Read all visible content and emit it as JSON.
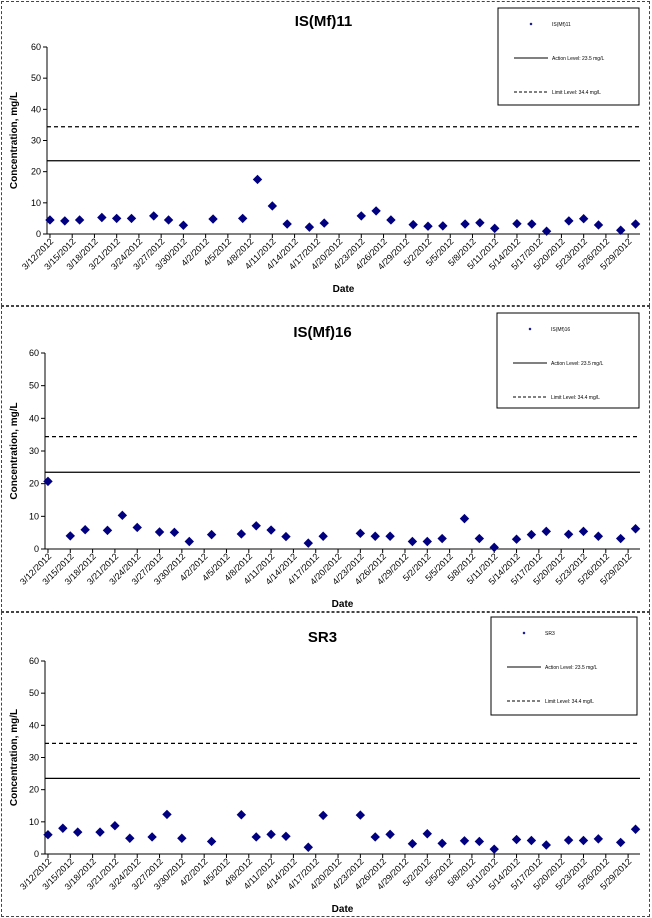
{
  "chart_data": [
    {
      "type": "scatter",
      "title": "IS(Mf)11",
      "xlabel": "Date",
      "ylabel": "Concentration, mg/L",
      "ylim": [
        0,
        60
      ],
      "yticks": [
        "0",
        "10",
        "20",
        "30",
        "40",
        "50",
        "60"
      ],
      "xticks": [
        "3/12/2012",
        "3/15/2012",
        "3/18/2012",
        "3/21/2012",
        "3/24/2012",
        "3/27/2012",
        "3/30/2012",
        "4/2/2012",
        "4/5/2012",
        "4/8/2012",
        "4/11/2012",
        "4/14/2012",
        "4/17/2012",
        "4/20/2012",
        "4/23/2012",
        "4/26/2012",
        "4/29/2012",
        "5/2/2012",
        "5/5/2012",
        "5/8/2012",
        "5/11/2012",
        "5/14/2012",
        "5/17/2012",
        "5/20/2012",
        "5/23/2012",
        "5/26/2012",
        "5/29/2012"
      ],
      "grid": false,
      "legend_position": "top-right",
      "series": [
        {
          "name": "IS(Mf)11",
          "marker": "diamond",
          "color": "#000080",
          "x": [
            "3/12/2012",
            "3/14/2012",
            "3/16/2012",
            "3/19/2012",
            "3/21/2012",
            "3/23/2012",
            "3/26/2012",
            "3/28/2012",
            "3/30/2012",
            "4/3/2012",
            "4/7/2012",
            "4/9/2012",
            "4/11/2012",
            "4/13/2012",
            "4/16/2012",
            "4/18/2012",
            "4/23/2012",
            "4/25/2012",
            "4/27/2012",
            "4/30/2012",
            "5/2/2012",
            "5/4/2012",
            "5/7/2012",
            "5/9/2012",
            "5/11/2012",
            "5/14/2012",
            "5/16/2012",
            "5/18/2012",
            "5/21/2012",
            "5/23/2012",
            "5/25/2012",
            "5/28/2012",
            "5/30/2012"
          ],
          "y": [
            4.5,
            4.2,
            4.5,
            5.3,
            5.0,
            5.0,
            5.8,
            4.5,
            2.8,
            4.8,
            5.0,
            17.5,
            9.0,
            3.2,
            2.2,
            3.5,
            5.8,
            7.4,
            4.5,
            3.0,
            2.5,
            2.6,
            3.2,
            3.6,
            1.8,
            3.3,
            3.2,
            0.9,
            4.2,
            4.9,
            2.9,
            1.2,
            3.2
          ]
        },
        {
          "name": "Action Level: 23.5 mg/L",
          "type": "hline",
          "value": 23.5,
          "style": "solid"
        },
        {
          "name": "Limit Level: 34.4 mg/L",
          "type": "hline",
          "value": 34.4,
          "style": "dashed"
        }
      ]
    },
    {
      "type": "scatter",
      "title": "IS(Mf)16",
      "xlabel": "Date",
      "ylabel": "Concentration, mg/L",
      "ylim": [
        0,
        60
      ],
      "yticks": [
        "0",
        "10",
        "20",
        "30",
        "40",
        "50",
        "60"
      ],
      "xticks": [
        "3/12/2012",
        "3/15/2012",
        "3/18/2012",
        "3/21/2012",
        "3/24/2012",
        "3/27/2012",
        "3/30/2012",
        "4/2/2012",
        "4/5/2012",
        "4/8/2012",
        "4/11/2012",
        "4/14/2012",
        "4/17/2012",
        "4/20/2012",
        "4/23/2012",
        "4/26/2012",
        "4/29/2012",
        "5/2/2012",
        "5/5/2012",
        "5/8/2012",
        "5/11/2012",
        "5/14/2012",
        "5/17/2012",
        "5/20/2012",
        "5/23/2012",
        "5/26/2012",
        "5/29/2012"
      ],
      "grid": false,
      "legend_position": "top-right",
      "series": [
        {
          "name": "IS(Mf)16",
          "marker": "diamond",
          "color": "#000080",
          "x": [
            "3/12/2012",
            "3/15/2012",
            "3/17/2012",
            "3/20/2012",
            "3/22/2012",
            "3/24/2012",
            "3/27/2012",
            "3/29/2012",
            "3/31/2012",
            "4/3/2012",
            "4/7/2012",
            "4/9/2012",
            "4/11/2012",
            "4/13/2012",
            "4/16/2012",
            "4/18/2012",
            "4/23/2012",
            "4/25/2012",
            "4/27/2012",
            "4/30/2012",
            "5/2/2012",
            "5/4/2012",
            "5/7/2012",
            "5/9/2012",
            "5/11/2012",
            "5/14/2012",
            "5/16/2012",
            "5/18/2012",
            "5/21/2012",
            "5/23/2012",
            "5/25/2012",
            "5/28/2012",
            "5/30/2012"
          ],
          "y": [
            20.7,
            4.0,
            5.9,
            5.7,
            10.3,
            6.6,
            5.2,
            5.1,
            2.3,
            4.4,
            4.6,
            7.1,
            5.8,
            3.8,
            1.8,
            3.9,
            4.8,
            3.9,
            3.9,
            2.3,
            2.3,
            3.2,
            9.3,
            3.2,
            0.5,
            3.0,
            4.4,
            5.4,
            4.5,
            5.4,
            3.9,
            3.2,
            6.2
          ]
        },
        {
          "name": "Action Level: 23.5 mg/L",
          "type": "hline",
          "value": 23.5,
          "style": "solid"
        },
        {
          "name": "Limit Level: 34.4 mg/L",
          "type": "hline",
          "value": 34.4,
          "style": "dashed"
        }
      ]
    },
    {
      "type": "scatter",
      "title": "SR3",
      "xlabel": "Date",
      "ylabel": "Concentration, mg/L",
      "ylim": [
        0,
        60
      ],
      "yticks": [
        "0",
        "10",
        "20",
        "30",
        "40",
        "50",
        "60"
      ],
      "xticks": [
        "3/12/2012",
        "3/15/2012",
        "3/18/2012",
        "3/21/2012",
        "3/24/2012",
        "3/27/2012",
        "3/30/2012",
        "4/2/2012",
        "4/5/2012",
        "4/8/2012",
        "4/11/2012",
        "4/14/2012",
        "4/17/2012",
        "4/20/2012",
        "4/23/2012",
        "4/26/2012",
        "4/29/2012",
        "5/2/2012",
        "5/5/2012",
        "5/8/2012",
        "5/11/2012",
        "5/14/2012",
        "5/17/2012",
        "5/20/2012",
        "5/23/2012",
        "5/26/2012",
        "5/29/2012"
      ],
      "grid": false,
      "legend_position": "top-right",
      "series": [
        {
          "name": "SR3",
          "marker": "diamond",
          "color": "#000080",
          "x": [
            "3/12/2012",
            "3/14/2012",
            "3/16/2012",
            "3/19/2012",
            "3/21/2012",
            "3/23/2012",
            "3/26/2012",
            "3/28/2012",
            "3/30/2012",
            "4/3/2012",
            "4/7/2012",
            "4/9/2012",
            "4/11/2012",
            "4/13/2012",
            "4/16/2012",
            "4/18/2012",
            "4/23/2012",
            "4/25/2012",
            "4/27/2012",
            "4/30/2012",
            "5/2/2012",
            "5/4/2012",
            "5/7/2012",
            "5/9/2012",
            "5/11/2012",
            "5/14/2012",
            "5/16/2012",
            "5/18/2012",
            "5/21/2012",
            "5/23/2012",
            "5/25/2012",
            "5/28/2012",
            "5/30/2012"
          ],
          "y": [
            6.0,
            8.0,
            6.8,
            6.8,
            8.8,
            4.9,
            5.3,
            12.3,
            4.9,
            3.9,
            12.2,
            5.3,
            6.1,
            5.5,
            2.1,
            12.0,
            12.1,
            5.3,
            6.1,
            3.2,
            6.3,
            3.3,
            4.1,
            3.9,
            1.5,
            4.5,
            4.2,
            2.8,
            4.3,
            4.2,
            4.7,
            3.6,
            7.7
          ]
        },
        {
          "name": "Action Level: 23.5 mg/L",
          "type": "hline",
          "value": 23.5,
          "style": "solid"
        },
        {
          "name": "Limit Level: 34.4 mg/L",
          "type": "hline",
          "value": 34.4,
          "style": "dashed"
        }
      ]
    }
  ]
}
